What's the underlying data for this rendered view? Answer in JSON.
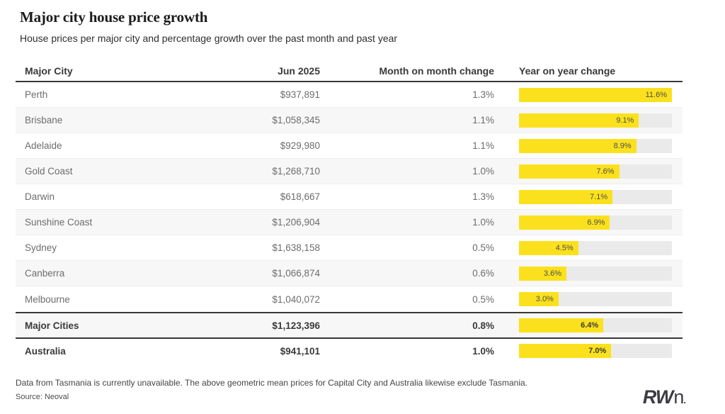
{
  "header": {
    "title": "Major city house price growth",
    "subtitle": "House prices per major city and percentage growth over the past month and past year"
  },
  "table": {
    "columns": [
      "Major City",
      "Jun 2025",
      "Month on month change",
      "Year on year change"
    ],
    "bar_max_percent": 11.6,
    "colors": {
      "bar_fill": "#FBE11D",
      "bar_track": "#EAEAEA",
      "rule": "#38383A",
      "stripe": "#F7F7F7"
    },
    "rows": [
      {
        "city": "Perth",
        "price": "$937,891",
        "mom": "1.3%",
        "yoy": 11.6,
        "yoy_label": "11.6%",
        "bold": false
      },
      {
        "city": "Brisbane",
        "price": "$1,058,345",
        "mom": "1.1%",
        "yoy": 9.1,
        "yoy_label": "9.1%",
        "bold": false
      },
      {
        "city": "Adelaide",
        "price": "$929,980",
        "mom": "1.1%",
        "yoy": 8.9,
        "yoy_label": "8.9%",
        "bold": false
      },
      {
        "city": "Gold Coast",
        "price": "$1,268,710",
        "mom": "1.0%",
        "yoy": 7.6,
        "yoy_label": "7.6%",
        "bold": false
      },
      {
        "city": "Darwin",
        "price": "$618,667",
        "mom": "1.3%",
        "yoy": 7.1,
        "yoy_label": "7.1%",
        "bold": false
      },
      {
        "city": "Sunshine Coast",
        "price": "$1,206,904",
        "mom": "1.0%",
        "yoy": 6.9,
        "yoy_label": "6.9%",
        "bold": false
      },
      {
        "city": "Sydney",
        "price": "$1,638,158",
        "mom": "0.5%",
        "yoy": 4.5,
        "yoy_label": "4.5%",
        "bold": false
      },
      {
        "city": "Canberra",
        "price": "$1,066,874",
        "mom": "0.6%",
        "yoy": 3.6,
        "yoy_label": "3.6%",
        "bold": false
      },
      {
        "city": "Melbourne",
        "price": "$1,040,072",
        "mom": "0.5%",
        "yoy": 3.0,
        "yoy_label": "3.0%",
        "bold": false
      },
      {
        "city": "Major Cities",
        "price": "$1,123,396",
        "mom": "0.8%",
        "yoy": 6.4,
        "yoy_label": "6.4%",
        "bold": true
      },
      {
        "city": "Australia",
        "price": "$941,101",
        "mom": "1.0%",
        "yoy": 7.0,
        "yoy_label": "7.0%",
        "bold": true
      }
    ]
  },
  "footer": {
    "note": "Data from Tasmania is currently unavailable. The above geometric mean prices for Capital City and Australia likewise exclude Tasmania.",
    "source": "Source: Neoval",
    "logo": {
      "bold": "RW",
      "light": "n",
      "dot": "."
    }
  },
  "chart_data": {
    "type": "bar",
    "orientation": "horizontal",
    "title": "Major city house price growth",
    "subtitle": "House prices per major city and percentage growth over the past month and past year",
    "categories": [
      "Perth",
      "Brisbane",
      "Adelaide",
      "Gold Coast",
      "Darwin",
      "Sunshine Coast",
      "Sydney",
      "Canberra",
      "Melbourne",
      "Major Cities",
      "Australia"
    ],
    "series": [
      {
        "name": "Jun 2025 price ($)",
        "values": [
          937891,
          1058345,
          929980,
          1268710,
          618667,
          1206904,
          1638158,
          1066874,
          1040072,
          1123396,
          941101
        ]
      },
      {
        "name": "Month on month change (%)",
        "values": [
          1.3,
          1.1,
          1.1,
          1.0,
          1.3,
          1.0,
          0.5,
          0.6,
          0.5,
          0.8,
          1.0
        ]
      },
      {
        "name": "Year on year change (%)",
        "values": [
          11.6,
          9.1,
          8.9,
          7.6,
          7.1,
          6.9,
          4.5,
          3.6,
          3.0,
          6.4,
          7.0
        ]
      }
    ],
    "bar_series_plotted": "Year on year change (%)",
    "xlim": [
      0,
      11.6
    ],
    "grid": false,
    "legend": false,
    "annotations": "Year on year change shown as yellow bars on grey tracks with value labels inside bars"
  }
}
